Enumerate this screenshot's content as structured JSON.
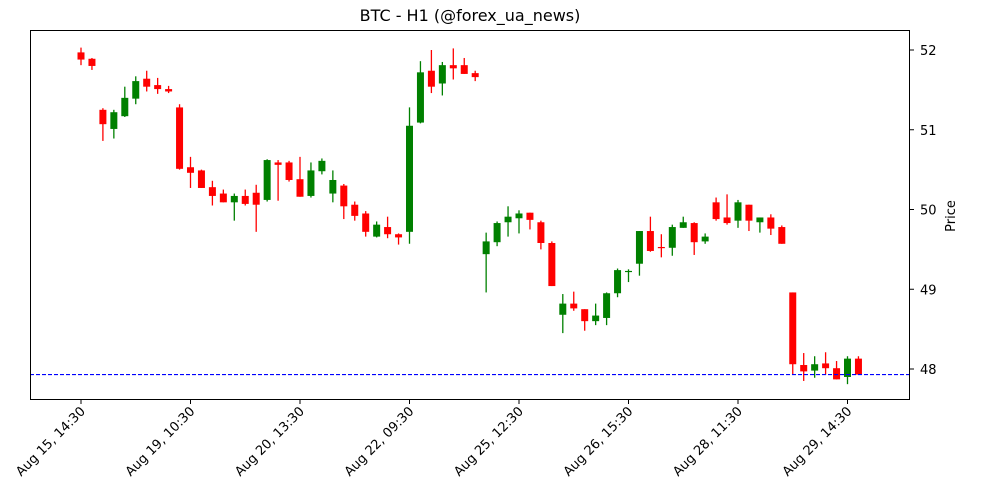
{
  "chart_data": {
    "type": "candlestick",
    "title": "BTC - H1 (@forex_ua_news)",
    "xlabel": "",
    "ylabel": "Price",
    "ylim": [
      47.6,
      52.25
    ],
    "y_ticks": [
      48,
      49,
      50,
      51,
      52
    ],
    "x_ticks": [
      {
        "index": 0,
        "label": "Aug 15, 14:30"
      },
      {
        "index": 10,
        "label": "Aug 19, 10:30"
      },
      {
        "index": 20,
        "label": "Aug 20, 13:30"
      },
      {
        "index": 30,
        "label": "Aug 22, 09:30"
      },
      {
        "index": 40,
        "label": "Aug 25, 12:30"
      },
      {
        "index": 50,
        "label": "Aug 26, 15:30"
      },
      {
        "index": 60,
        "label": "Aug 28, 11:30"
      },
      {
        "index": 70,
        "label": "Aug 29, 14:30"
      }
    ],
    "grid": false,
    "up_color": "#008000",
    "down_color": "#ff0000",
    "reference_line": {
      "value": 47.93,
      "color": "#0000ff",
      "style": "dashed"
    },
    "ohlc": [
      [
        51.97,
        52.03,
        51.81,
        51.88
      ],
      [
        51.89,
        51.9,
        51.75,
        51.8
      ],
      [
        51.25,
        51.27,
        50.86,
        51.07
      ],
      [
        51.01,
        51.25,
        50.89,
        51.22
      ],
      [
        51.17,
        51.54,
        51.16,
        51.4
      ],
      [
        51.39,
        51.67,
        51.32,
        51.61
      ],
      [
        51.64,
        51.74,
        51.48,
        51.54
      ],
      [
        51.56,
        51.65,
        51.45,
        51.51
      ],
      [
        51.51,
        51.55,
        51.46,
        51.48
      ],
      [
        51.28,
        51.32,
        50.5,
        50.51
      ],
      [
        50.53,
        50.66,
        50.27,
        50.46
      ],
      [
        50.49,
        50.5,
        50.27,
        50.27
      ],
      [
        50.28,
        50.36,
        50.05,
        50.17
      ],
      [
        50.2,
        50.25,
        50.09,
        50.09
      ],
      [
        50.09,
        50.2,
        49.86,
        50.17
      ],
      [
        50.17,
        50.25,
        50.05,
        50.07
      ],
      [
        50.21,
        50.31,
        49.72,
        50.06
      ],
      [
        50.12,
        50.63,
        50.1,
        50.62
      ],
      [
        50.59,
        50.62,
        50.11,
        50.56
      ],
      [
        50.59,
        50.61,
        50.35,
        50.37
      ],
      [
        50.38,
        50.66,
        50.16,
        50.16
      ],
      [
        50.17,
        50.59,
        50.15,
        50.49
      ],
      [
        50.48,
        50.64,
        50.44,
        50.61
      ],
      [
        50.2,
        50.49,
        50.09,
        50.37
      ],
      [
        50.3,
        50.32,
        49.88,
        50.04
      ],
      [
        50.06,
        50.1,
        49.86,
        49.92
      ],
      [
        49.95,
        49.98,
        49.66,
        49.72
      ],
      [
        49.66,
        49.85,
        49.65,
        49.81
      ],
      [
        49.78,
        49.91,
        49.64,
        49.69
      ],
      [
        49.69,
        49.7,
        49.56,
        49.65
      ],
      [
        49.72,
        51.28,
        49.57,
        51.05
      ],
      [
        51.09,
        51.86,
        51.08,
        51.72
      ],
      [
        51.74,
        52.0,
        51.46,
        51.54
      ],
      [
        51.58,
        51.85,
        51.43,
        51.81
      ],
      [
        51.81,
        52.02,
        51.63,
        51.77
      ],
      [
        51.81,
        51.9,
        51.7,
        51.7
      ],
      [
        51.71,
        51.74,
        51.61,
        51.66
      ],
      [
        49.44,
        49.71,
        48.96,
        49.6
      ],
      [
        49.59,
        49.85,
        49.54,
        49.83
      ],
      [
        49.84,
        50.04,
        49.66,
        49.91
      ],
      [
        49.89,
        49.99,
        49.7,
        49.95
      ],
      [
        49.96,
        49.96,
        49.75,
        49.87
      ],
      [
        49.84,
        49.86,
        49.5,
        49.58
      ],
      [
        49.58,
        49.6,
        49.04,
        49.04
      ],
      [
        48.68,
        48.94,
        48.45,
        48.82
      ],
      [
        48.82,
        48.97,
        48.73,
        48.76
      ],
      [
        48.75,
        48.75,
        48.48,
        48.6
      ],
      [
        48.6,
        48.82,
        48.55,
        48.67
      ],
      [
        48.64,
        48.96,
        48.55,
        48.95
      ],
      [
        48.95,
        49.26,
        48.9,
        49.24
      ],
      [
        49.22,
        49.25,
        49.09,
        49.23
      ],
      [
        49.32,
        49.73,
        49.17,
        49.73
      ],
      [
        49.73,
        49.91,
        49.47,
        49.48
      ],
      [
        49.53,
        49.69,
        49.4,
        49.52
      ],
      [
        49.52,
        49.81,
        49.42,
        49.78
      ],
      [
        49.77,
        49.91,
        49.77,
        49.84
      ],
      [
        49.83,
        49.84,
        49.43,
        49.59
      ],
      [
        49.6,
        49.7,
        49.57,
        49.66
      ],
      [
        50.09,
        50.15,
        49.86,
        49.88
      ],
      [
        49.9,
        50.19,
        49.81,
        49.83
      ],
      [
        49.86,
        50.12,
        49.77,
        50.09
      ],
      [
        50.06,
        50.06,
        49.73,
        49.86
      ],
      [
        49.84,
        49.9,
        49.71,
        49.9
      ],
      [
        49.9,
        49.94,
        49.68,
        49.76
      ],
      [
        49.78,
        49.8,
        49.57,
        49.57
      ],
      [
        48.96,
        48.96,
        47.93,
        48.06
      ],
      [
        48.05,
        48.2,
        47.85,
        47.97
      ],
      [
        47.98,
        48.16,
        47.89,
        48.06
      ],
      [
        48.07,
        48.21,
        47.93,
        48.01
      ],
      [
        48.01,
        48.1,
        47.87,
        47.87
      ],
      [
        47.9,
        48.16,
        47.81,
        48.13
      ],
      [
        48.13,
        48.16,
        47.93,
        47.93
      ]
    ],
    "ohlc_columns": [
      "open",
      "high",
      "low",
      "close"
    ]
  }
}
